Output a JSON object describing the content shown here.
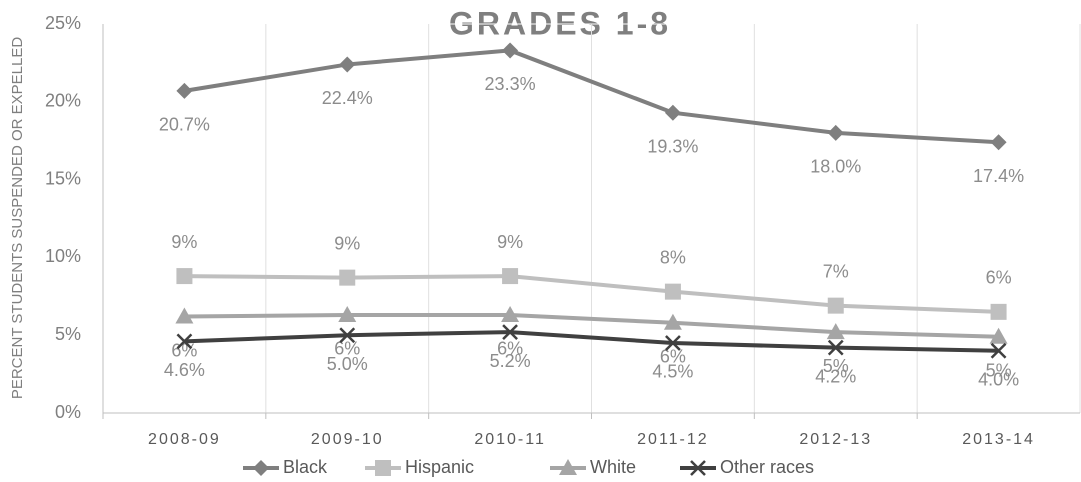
{
  "chart_data": {
    "type": "line",
    "title": "GRADES 1-8",
    "y_label": "PERCENT STUDENTS SUSPENDED OR EXPELLED",
    "categories": [
      "2008-09",
      "2009-10",
      "2010-11",
      "2011-12",
      "2012-13",
      "2013-14"
    ],
    "series": [
      {
        "name": "Black",
        "color": "#7f7f7f",
        "values": [
          20.7,
          22.4,
          23.3,
          19.3,
          18.0,
          17.4
        ],
        "value_labels": [
          "20.7%",
          "22.4%",
          "23.3%",
          "19.3%",
          "18.0%",
          "17.4%"
        ]
      },
      {
        "name": "Hispanic",
        "color": "#bfbfbf",
        "values": [
          8.8,
          8.7,
          8.8,
          7.8,
          6.9,
          6.5
        ],
        "value_labels": [
          "9%",
          "9%",
          "9%",
          "8%",
          "7%",
          "6%"
        ]
      },
      {
        "name": "White",
        "color": "#a5a5a5",
        "values": [
          6.2,
          6.3,
          6.3,
          5.8,
          5.2,
          4.9
        ],
        "value_labels": [
          "6%",
          "6%",
          "6%",
          "6%",
          "5%",
          "5%"
        ]
      },
      {
        "name": "Other races",
        "color": "#404040",
        "values": [
          4.6,
          5.0,
          5.2,
          4.5,
          4.2,
          4.0
        ],
        "value_labels": [
          "4.6%",
          "5.0%",
          "5.2%",
          "4.5%",
          "4.2%",
          "4.0%"
        ]
      }
    ],
    "ylim": [
      0,
      25
    ],
    "yticks": [
      {
        "value": 0,
        "label": "0%"
      },
      {
        "value": 5,
        "label": "5%"
      },
      {
        "value": 10,
        "label": "10%"
      },
      {
        "value": 15,
        "label": "15%"
      },
      {
        "value": 20,
        "label": "20%"
      },
      {
        "value": 25,
        "label": "25%"
      }
    ],
    "grid": true,
    "legend": "bottom"
  }
}
